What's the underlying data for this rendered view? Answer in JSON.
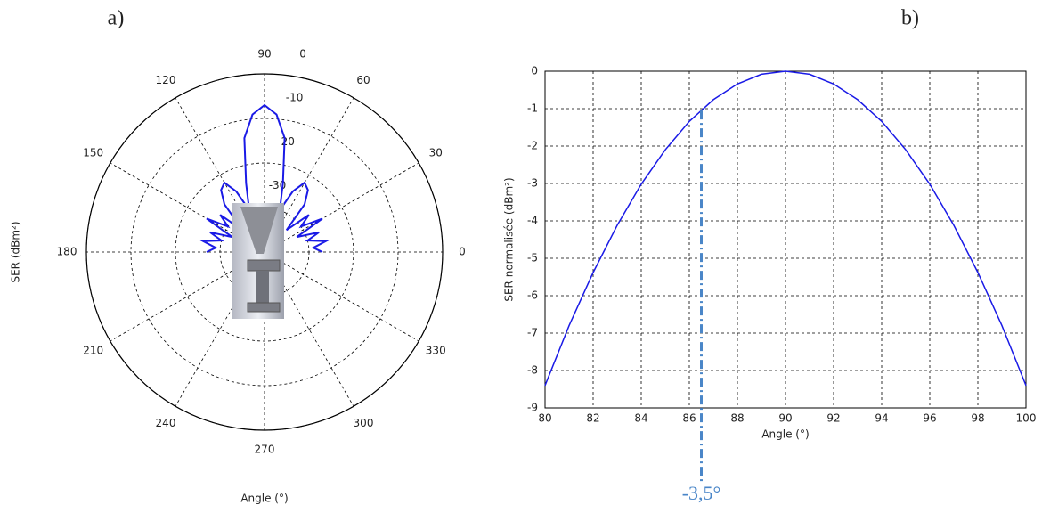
{
  "chart_data": [
    {
      "type": "polar",
      "title": "a)",
      "ylabel": "SER (dBm²)",
      "xlabel": "Angle (°)",
      "theta": [
        0,
        5,
        10,
        15,
        20,
        25,
        30,
        35,
        40,
        45,
        50,
        55,
        60,
        65,
        70,
        75,
        80,
        85,
        90,
        95,
        100,
        105,
        110,
        115,
        120,
        125,
        130,
        135,
        140,
        145,
        150,
        155,
        160,
        165,
        170,
        175,
        180
      ],
      "series": [
        {
          "name": "SER",
          "color": "#1a1ae6",
          "values": [
            -27,
            -29,
            -26,
            -30,
            -27,
            -32,
            -25,
            -30,
            -27,
            -33,
            -26,
            -23,
            -22,
            -25,
            -30,
            -24,
            -14,
            -9,
            -7,
            -9,
            -14,
            -24,
            -30,
            -25,
            -22,
            -23,
            -26,
            -33,
            -27,
            -30,
            -25,
            -32,
            -27,
            -30,
            -26,
            -29,
            -27
          ]
        }
      ],
      "rlim": [
        -40,
        0
      ],
      "rticks": [
        0,
        -10,
        -20,
        -30
      ],
      "thetaticks": [
        0,
        30,
        60,
        90,
        120,
        150,
        180,
        210,
        240,
        270,
        300,
        330
      ],
      "grid": true
    },
    {
      "type": "line",
      "title": "b)",
      "xlabel": "Angle (°)",
      "ylabel": "SER normalisée (dBm²)",
      "x": [
        80,
        81,
        82,
        83,
        84,
        85,
        86,
        87,
        88,
        89,
        90,
        91,
        92,
        93,
        94,
        95,
        96,
        97,
        98,
        99,
        100
      ],
      "series": [
        {
          "name": "SER normalisée",
          "color": "#1a1ae6",
          "values": [
            -8.4,
            -6.8,
            -5.38,
            -4.12,
            -3.02,
            -2.1,
            -1.34,
            -0.76,
            -0.34,
            -0.08,
            0,
            -0.08,
            -0.34,
            -0.76,
            -1.34,
            -2.1,
            -3.02,
            -4.12,
            -5.38,
            -6.8,
            -8.4
          ]
        }
      ],
      "xlim": [
        80,
        100
      ],
      "xticks": [
        80,
        82,
        84,
        86,
        88,
        90,
        92,
        94,
        96,
        98,
        100
      ],
      "ylim": [
        -9,
        0
      ],
      "yticks": [
        0,
        -1,
        -2,
        -3,
        -4,
        -5,
        -6,
        -7,
        -8,
        -9
      ],
      "grid": true,
      "annotation": {
        "text": "-3,5°",
        "x": 86.5,
        "color": "#4a86c8"
      }
    }
  ]
}
